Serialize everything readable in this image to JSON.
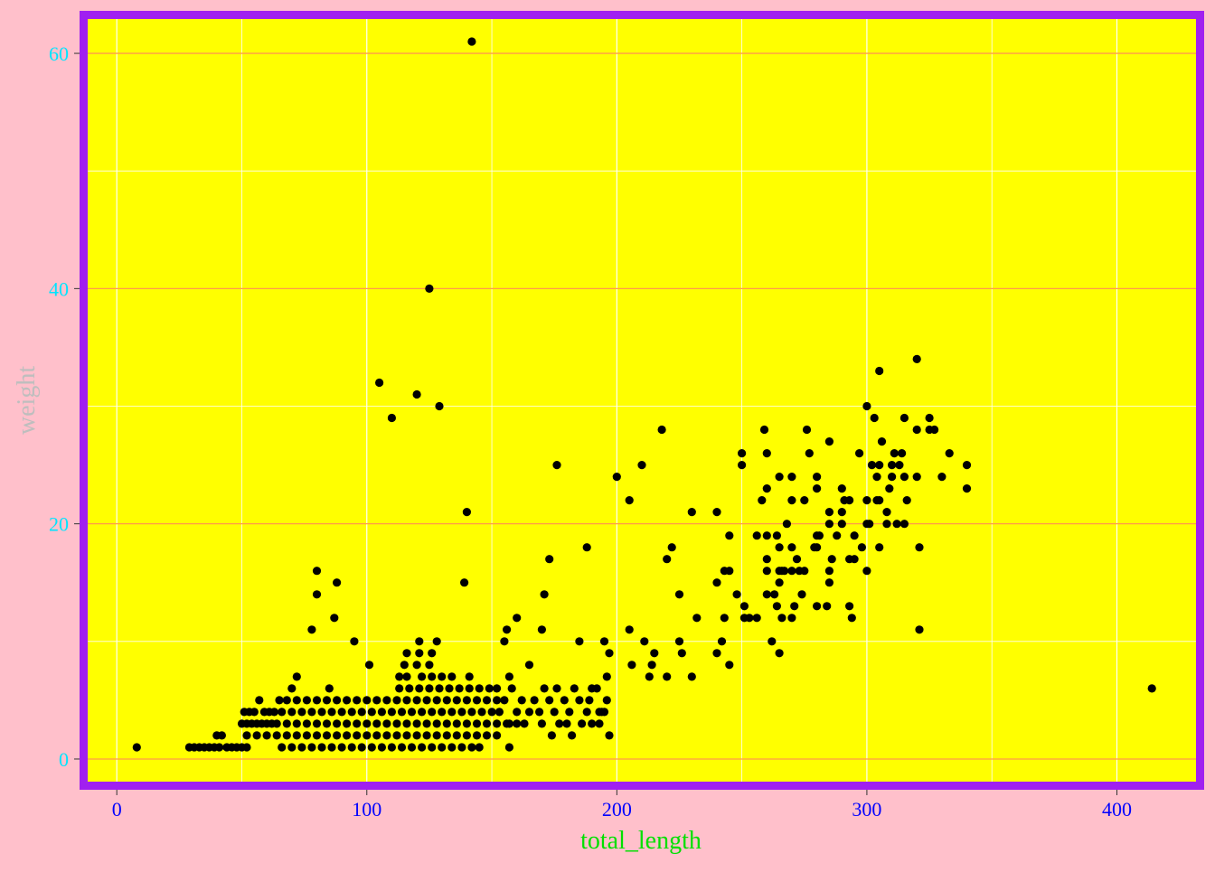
{
  "chart_data": {
    "type": "scatter",
    "title": "",
    "xlabel": "total_length",
    "ylabel": "weight",
    "xlim": [
      -12,
      432
    ],
    "ylim": [
      -2,
      63
    ],
    "xticks": [
      0,
      100,
      200,
      300,
      400
    ],
    "yticks": [
      0,
      20,
      40,
      60
    ],
    "xtick_labels": [
      "0",
      "100",
      "200",
      "300",
      "400"
    ],
    "ytick_labels": [
      "0",
      "20",
      "40",
      "60"
    ],
    "grid": true,
    "colors": {
      "page_background": "#FFC0CB",
      "panel_background": "#FFFF00",
      "panel_border": "#A020F0",
      "major_grid_y": "#FF9B4A",
      "minor_grid": "#FFFFFF",
      "point": "#000000",
      "x_tick_text": "#0000FF",
      "y_tick_text": "#00E5FF",
      "x_title": "#00E000",
      "y_title": "#BEBEBE"
    },
    "points": [
      [
        8,
        1
      ],
      [
        29,
        1
      ],
      [
        31,
        1
      ],
      [
        33,
        1
      ],
      [
        35,
        1
      ],
      [
        37,
        1
      ],
      [
        39,
        1
      ],
      [
        41,
        1
      ],
      [
        40,
        2
      ],
      [
        42,
        2
      ],
      [
        44,
        1
      ],
      [
        46,
        1
      ],
      [
        48,
        1
      ],
      [
        50,
        1
      ],
      [
        52,
        1
      ],
      [
        50,
        3
      ],
      [
        52,
        3
      ],
      [
        54,
        3
      ],
      [
        56,
        3
      ],
      [
        58,
        3
      ],
      [
        60,
        3
      ],
      [
        62,
        3
      ],
      [
        64,
        3
      ],
      [
        51,
        4
      ],
      [
        53,
        4
      ],
      [
        55,
        4
      ],
      [
        57,
        5
      ],
      [
        59,
        4
      ],
      [
        61,
        4
      ],
      [
        63,
        4
      ],
      [
        65,
        5
      ],
      [
        52,
        2
      ],
      [
        56,
        2
      ],
      [
        60,
        2
      ],
      [
        64,
        2
      ],
      [
        68,
        2
      ],
      [
        72,
        2
      ],
      [
        76,
        2
      ],
      [
        80,
        2
      ],
      [
        84,
        2
      ],
      [
        88,
        2
      ],
      [
        92,
        2
      ],
      [
        96,
        2
      ],
      [
        100,
        2
      ],
      [
        104,
        2
      ],
      [
        108,
        2
      ],
      [
        112,
        2
      ],
      [
        116,
        2
      ],
      [
        120,
        2
      ],
      [
        124,
        2
      ],
      [
        128,
        2
      ],
      [
        132,
        2
      ],
      [
        136,
        2
      ],
      [
        140,
        2
      ],
      [
        144,
        2
      ],
      [
        148,
        2
      ],
      [
        152,
        2
      ],
      [
        66,
        1
      ],
      [
        70,
        1
      ],
      [
        74,
        1
      ],
      [
        78,
        1
      ],
      [
        82,
        1
      ],
      [
        86,
        1
      ],
      [
        90,
        1
      ],
      [
        94,
        1
      ],
      [
        98,
        1
      ],
      [
        102,
        1
      ],
      [
        106,
        1
      ],
      [
        110,
        1
      ],
      [
        114,
        1
      ],
      [
        118,
        1
      ],
      [
        122,
        1
      ],
      [
        126,
        1
      ],
      [
        130,
        1
      ],
      [
        134,
        1
      ],
      [
        138,
        1
      ],
      [
        142,
        1
      ],
      [
        145,
        1
      ],
      [
        157,
        1
      ],
      [
        68,
        3
      ],
      [
        72,
        3
      ],
      [
        76,
        3
      ],
      [
        80,
        3
      ],
      [
        84,
        3
      ],
      [
        88,
        3
      ],
      [
        92,
        3
      ],
      [
        96,
        3
      ],
      [
        100,
        3
      ],
      [
        104,
        3
      ],
      [
        108,
        3
      ],
      [
        112,
        3
      ],
      [
        116,
        3
      ],
      [
        120,
        3
      ],
      [
        124,
        3
      ],
      [
        128,
        3
      ],
      [
        132,
        3
      ],
      [
        136,
        3
      ],
      [
        140,
        3
      ],
      [
        144,
        3
      ],
      [
        148,
        3
      ],
      [
        152,
        3
      ],
      [
        156,
        3
      ],
      [
        160,
        3
      ],
      [
        66,
        4
      ],
      [
        70,
        4
      ],
      [
        74,
        4
      ],
      [
        78,
        4
      ],
      [
        82,
        4
      ],
      [
        86,
        4
      ],
      [
        90,
        4
      ],
      [
        94,
        4
      ],
      [
        98,
        4
      ],
      [
        102,
        4
      ],
      [
        106,
        4
      ],
      [
        110,
        4
      ],
      [
        114,
        4
      ],
      [
        118,
        4
      ],
      [
        122,
        4
      ],
      [
        126,
        4
      ],
      [
        130,
        4
      ],
      [
        134,
        4
      ],
      [
        138,
        4
      ],
      [
        142,
        4
      ],
      [
        146,
        4
      ],
      [
        150,
        4
      ],
      [
        68,
        5
      ],
      [
        72,
        5
      ],
      [
        76,
        5
      ],
      [
        80,
        5
      ],
      [
        84,
        5
      ],
      [
        88,
        5
      ],
      [
        92,
        5
      ],
      [
        96,
        5
      ],
      [
        100,
        5
      ],
      [
        104,
        5
      ],
      [
        108,
        5
      ],
      [
        112,
        5
      ],
      [
        116,
        5
      ],
      [
        120,
        5
      ],
      [
        124,
        5
      ],
      [
        128,
        5
      ],
      [
        132,
        5
      ],
      [
        136,
        5
      ],
      [
        140,
        5
      ],
      [
        144,
        5
      ],
      [
        148,
        5
      ],
      [
        152,
        5
      ],
      [
        70,
        6
      ],
      [
        85,
        6
      ],
      [
        113,
        6
      ],
      [
        117,
        6
      ],
      [
        121,
        6
      ],
      [
        125,
        6
      ],
      [
        129,
        6
      ],
      [
        133,
        6
      ],
      [
        137,
        6
      ],
      [
        141,
        6
      ],
      [
        145,
        6
      ],
      [
        149,
        6
      ],
      [
        152,
        6
      ],
      [
        72,
        7
      ],
      [
        113,
        7
      ],
      [
        116,
        7
      ],
      [
        122,
        7
      ],
      [
        126,
        7
      ],
      [
        130,
        7
      ],
      [
        134,
        7
      ],
      [
        141,
        7
      ],
      [
        157,
        7
      ],
      [
        115,
        8
      ],
      [
        120,
        8
      ],
      [
        125,
        8
      ],
      [
        101,
        8
      ],
      [
        116,
        9
      ],
      [
        121,
        9
      ],
      [
        126,
        9
      ],
      [
        78,
        11
      ],
      [
        80,
        14
      ],
      [
        80,
        16
      ],
      [
        87,
        12
      ],
      [
        88,
        15
      ],
      [
        95,
        10
      ],
      [
        121,
        10
      ],
      [
        128,
        10
      ],
      [
        105,
        32
      ],
      [
        110,
        29
      ],
      [
        120,
        31
      ],
      [
        125,
        40
      ],
      [
        129,
        30
      ],
      [
        139,
        15
      ],
      [
        140,
        21
      ],
      [
        142,
        61
      ],
      [
        153,
        4
      ],
      [
        155,
        5
      ],
      [
        157,
        3
      ],
      [
        160,
        4
      ],
      [
        163,
        3
      ],
      [
        165,
        4
      ],
      [
        167,
        5
      ],
      [
        169,
        4
      ],
      [
        171,
        6
      ],
      [
        173,
        5
      ],
      [
        175,
        4
      ],
      [
        177,
        3
      ],
      [
        179,
        5
      ],
      [
        181,
        4
      ],
      [
        183,
        6
      ],
      [
        186,
        3
      ],
      [
        188,
        4
      ],
      [
        190,
        3
      ],
      [
        192,
        6
      ],
      [
        194,
        4
      ],
      [
        196,
        5
      ],
      [
        158,
        6
      ],
      [
        162,
        5
      ],
      [
        170,
        3
      ],
      [
        174,
        2
      ],
      [
        176,
        6
      ],
      [
        180,
        3
      ],
      [
        182,
        2
      ],
      [
        185,
        5
      ],
      [
        189,
        5
      ],
      [
        193,
        3
      ],
      [
        195,
        4
      ],
      [
        197,
        2
      ],
      [
        155,
        10
      ],
      [
        156,
        11
      ],
      [
        160,
        12
      ],
      [
        165,
        8
      ],
      [
        170,
        11
      ],
      [
        171,
        14
      ],
      [
        173,
        17
      ],
      [
        176,
        25
      ],
      [
        185,
        10
      ],
      [
        188,
        18
      ],
      [
        190,
        6
      ],
      [
        193,
        4
      ],
      [
        195,
        10
      ],
      [
        196,
        7
      ],
      [
        197,
        9
      ],
      [
        200,
        24
      ],
      [
        205,
        22
      ],
      [
        205,
        11
      ],
      [
        206,
        8
      ],
      [
        210,
        25
      ],
      [
        211,
        10
      ],
      [
        213,
        7
      ],
      [
        214,
        8
      ],
      [
        215,
        9
      ],
      [
        218,
        28
      ],
      [
        220,
        17
      ],
      [
        220,
        7
      ],
      [
        222,
        18
      ],
      [
        225,
        10
      ],
      [
        225,
        14
      ],
      [
        226,
        9
      ],
      [
        230,
        21
      ],
      [
        230,
        7
      ],
      [
        232,
        12
      ],
      [
        240,
        21
      ],
      [
        240,
        15
      ],
      [
        240,
        9
      ],
      [
        242,
        10
      ],
      [
        243,
        12
      ],
      [
        243,
        16
      ],
      [
        245,
        16
      ],
      [
        245,
        19
      ],
      [
        245,
        8
      ],
      [
        248,
        14
      ],
      [
        250,
        26
      ],
      [
        250,
        25
      ],
      [
        251,
        13
      ],
      [
        251,
        12
      ],
      [
        253,
        12
      ],
      [
        256,
        19
      ],
      [
        256,
        12
      ],
      [
        258,
        22
      ],
      [
        259,
        28
      ],
      [
        260,
        23
      ],
      [
        260,
        26
      ],
      [
        260,
        19
      ],
      [
        260,
        17
      ],
      [
        260,
        16
      ],
      [
        260,
        14
      ],
      [
        262,
        10
      ],
      [
        263,
        14
      ],
      [
        264,
        13
      ],
      [
        264,
        19
      ],
      [
        265,
        18
      ],
      [
        265,
        16
      ],
      [
        265,
        24
      ],
      [
        265,
        15
      ],
      [
        265,
        9
      ],
      [
        266,
        12
      ],
      [
        266,
        16
      ],
      [
        267,
        16
      ],
      [
        268,
        20
      ],
      [
        270,
        24
      ],
      [
        270,
        18
      ],
      [
        270,
        16
      ],
      [
        270,
        22
      ],
      [
        270,
        12
      ],
      [
        271,
        13
      ],
      [
        272,
        17
      ],
      [
        273,
        16
      ],
      [
        274,
        14
      ],
      [
        275,
        16
      ],
      [
        275,
        22
      ],
      [
        276,
        28
      ],
      [
        277,
        26
      ],
      [
        279,
        18
      ],
      [
        280,
        18
      ],
      [
        280,
        23
      ],
      [
        280,
        24
      ],
      [
        280,
        19
      ],
      [
        280,
        13
      ],
      [
        281,
        19
      ],
      [
        284,
        13
      ],
      [
        285,
        27
      ],
      [
        285,
        21
      ],
      [
        285,
        20
      ],
      [
        285,
        16
      ],
      [
        285,
        15
      ],
      [
        286,
        17
      ],
      [
        288,
        19
      ],
      [
        290,
        21
      ],
      [
        290,
        20
      ],
      [
        290,
        23
      ],
      [
        291,
        22
      ],
      [
        293,
        22
      ],
      [
        293,
        17
      ],
      [
        293,
        13
      ],
      [
        294,
        12
      ],
      [
        295,
        17
      ],
      [
        295,
        19
      ],
      [
        297,
        26
      ],
      [
        298,
        18
      ],
      [
        300,
        30
      ],
      [
        300,
        20
      ],
      [
        300,
        22
      ],
      [
        300,
        16
      ],
      [
        301,
        20
      ],
      [
        302,
        25
      ],
      [
        303,
        29
      ],
      [
        304,
        22
      ],
      [
        304,
        24
      ],
      [
        305,
        33
      ],
      [
        305,
        25
      ],
      [
        305,
        18
      ],
      [
        305,
        22
      ],
      [
        306,
        27
      ],
      [
        308,
        20
      ],
      [
        308,
        21
      ],
      [
        309,
        23
      ],
      [
        310,
        24
      ],
      [
        310,
        25
      ],
      [
        311,
        26
      ],
      [
        312,
        20
      ],
      [
        313,
        25
      ],
      [
        314,
        26
      ],
      [
        315,
        29
      ],
      [
        315,
        24
      ],
      [
        315,
        20
      ],
      [
        316,
        22
      ],
      [
        320,
        34
      ],
      [
        320,
        28
      ],
      [
        320,
        24
      ],
      [
        321,
        18
      ],
      [
        321,
        11
      ],
      [
        325,
        29
      ],
      [
        325,
        28
      ],
      [
        327,
        28
      ],
      [
        330,
        24
      ],
      [
        333,
        26
      ],
      [
        340,
        25
      ],
      [
        340,
        23
      ],
      [
        414,
        6
      ]
    ]
  }
}
